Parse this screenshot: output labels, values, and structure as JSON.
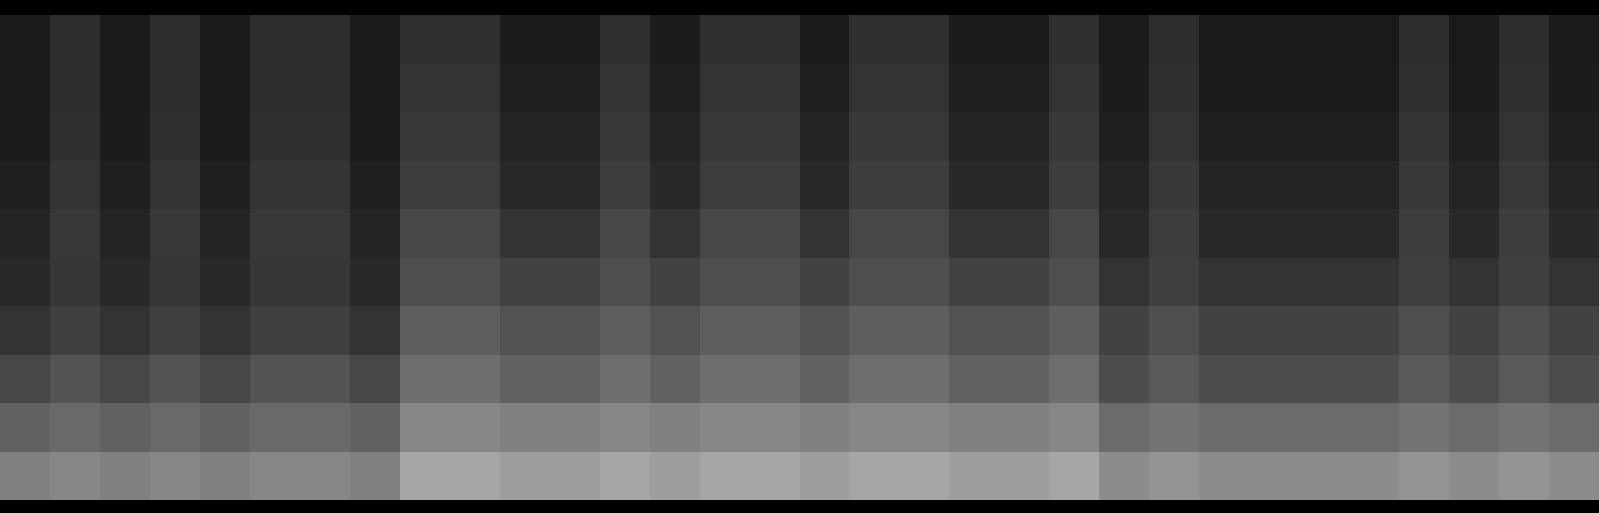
{
  "chart_data": {
    "type": "heatmap",
    "color": "#ffffff",
    "tick_labels": false,
    "grid": false,
    "zlim": [
      0,
      1
    ],
    "cells": [
      [
        0.5,
        0.53,
        0.5,
        0.53,
        0.5,
        0.53,
        0.53,
        0.5,
        0.65,
        0.65,
        0.62,
        0.62,
        0.65,
        0.62,
        0.65,
        0.65,
        0.62,
        0.65,
        0.65,
        0.62,
        0.62,
        0.65,
        0.55,
        0.58,
        0.55,
        0.55,
        0.55,
        0.55,
        0.58,
        0.55,
        0.58,
        0.55
      ],
      [
        0.38,
        0.41,
        0.38,
        0.41,
        0.38,
        0.41,
        0.41,
        0.38,
        0.53,
        0.53,
        0.5,
        0.5,
        0.53,
        0.5,
        0.53,
        0.53,
        0.5,
        0.53,
        0.53,
        0.5,
        0.5,
        0.53,
        0.42,
        0.45,
        0.42,
        0.42,
        0.42,
        0.42,
        0.45,
        0.42,
        0.45,
        0.42
      ],
      [
        0.28,
        0.33,
        0.28,
        0.33,
        0.28,
        0.33,
        0.33,
        0.28,
        0.43,
        0.43,
        0.38,
        0.38,
        0.43,
        0.38,
        0.43,
        0.43,
        0.38,
        0.43,
        0.43,
        0.38,
        0.38,
        0.43,
        0.3,
        0.35,
        0.3,
        0.3,
        0.3,
        0.3,
        0.35,
        0.3,
        0.35,
        0.3
      ],
      [
        0.2,
        0.25,
        0.2,
        0.25,
        0.2,
        0.25,
        0.25,
        0.2,
        0.37,
        0.37,
        0.32,
        0.32,
        0.37,
        0.32,
        0.37,
        0.37,
        0.32,
        0.37,
        0.37,
        0.32,
        0.32,
        0.37,
        0.26,
        0.31,
        0.26,
        0.26,
        0.26,
        0.26,
        0.31,
        0.26,
        0.31,
        0.26
      ],
      [
        0.16,
        0.21,
        0.16,
        0.21,
        0.16,
        0.21,
        0.21,
        0.16,
        0.31,
        0.31,
        0.26,
        0.26,
        0.31,
        0.26,
        0.31,
        0.31,
        0.26,
        0.31,
        0.31,
        0.26,
        0.26,
        0.31,
        0.2,
        0.25,
        0.2,
        0.2,
        0.2,
        0.2,
        0.25,
        0.2,
        0.25,
        0.2
      ],
      [
        0.14,
        0.22,
        0.14,
        0.22,
        0.14,
        0.22,
        0.22,
        0.14,
        0.28,
        0.28,
        0.2,
        0.2,
        0.28,
        0.2,
        0.28,
        0.28,
        0.2,
        0.28,
        0.28,
        0.2,
        0.2,
        0.28,
        0.16,
        0.24,
        0.16,
        0.16,
        0.16,
        0.16,
        0.24,
        0.16,
        0.24,
        0.16
      ],
      [
        0.12,
        0.2,
        0.12,
        0.2,
        0.12,
        0.2,
        0.2,
        0.12,
        0.24,
        0.24,
        0.16,
        0.16,
        0.24,
        0.16,
        0.24,
        0.24,
        0.16,
        0.24,
        0.24,
        0.16,
        0.16,
        0.24,
        0.14,
        0.22,
        0.14,
        0.14,
        0.14,
        0.14,
        0.22,
        0.14,
        0.22,
        0.14
      ],
      [
        0.11,
        0.19,
        0.11,
        0.19,
        0.11,
        0.19,
        0.19,
        0.11,
        0.22,
        0.22,
        0.14,
        0.14,
        0.22,
        0.14,
        0.22,
        0.22,
        0.14,
        0.22,
        0.22,
        0.14,
        0.14,
        0.22,
        0.12,
        0.2,
        0.12,
        0.12,
        0.12,
        0.12,
        0.2,
        0.12,
        0.2,
        0.12
      ],
      [
        0.1,
        0.18,
        0.1,
        0.18,
        0.1,
        0.18,
        0.18,
        0.1,
        0.2,
        0.2,
        0.12,
        0.12,
        0.2,
        0.12,
        0.2,
        0.2,
        0.12,
        0.2,
        0.2,
        0.12,
        0.12,
        0.2,
        0.11,
        0.19,
        0.11,
        0.11,
        0.11,
        0.11,
        0.19,
        0.11,
        0.19,
        0.11
      ],
      [
        0.1,
        0.18,
        0.1,
        0.18,
        0.1,
        0.18,
        0.18,
        0.1,
        0.19,
        0.19,
        0.11,
        0.11,
        0.19,
        0.11,
        0.19,
        0.19,
        0.11,
        0.19,
        0.19,
        0.11,
        0.11,
        0.19,
        0.1,
        0.18,
        0.1,
        0.1,
        0.1,
        0.1,
        0.18,
        0.1,
        0.18,
        0.1
      ]
    ]
  }
}
